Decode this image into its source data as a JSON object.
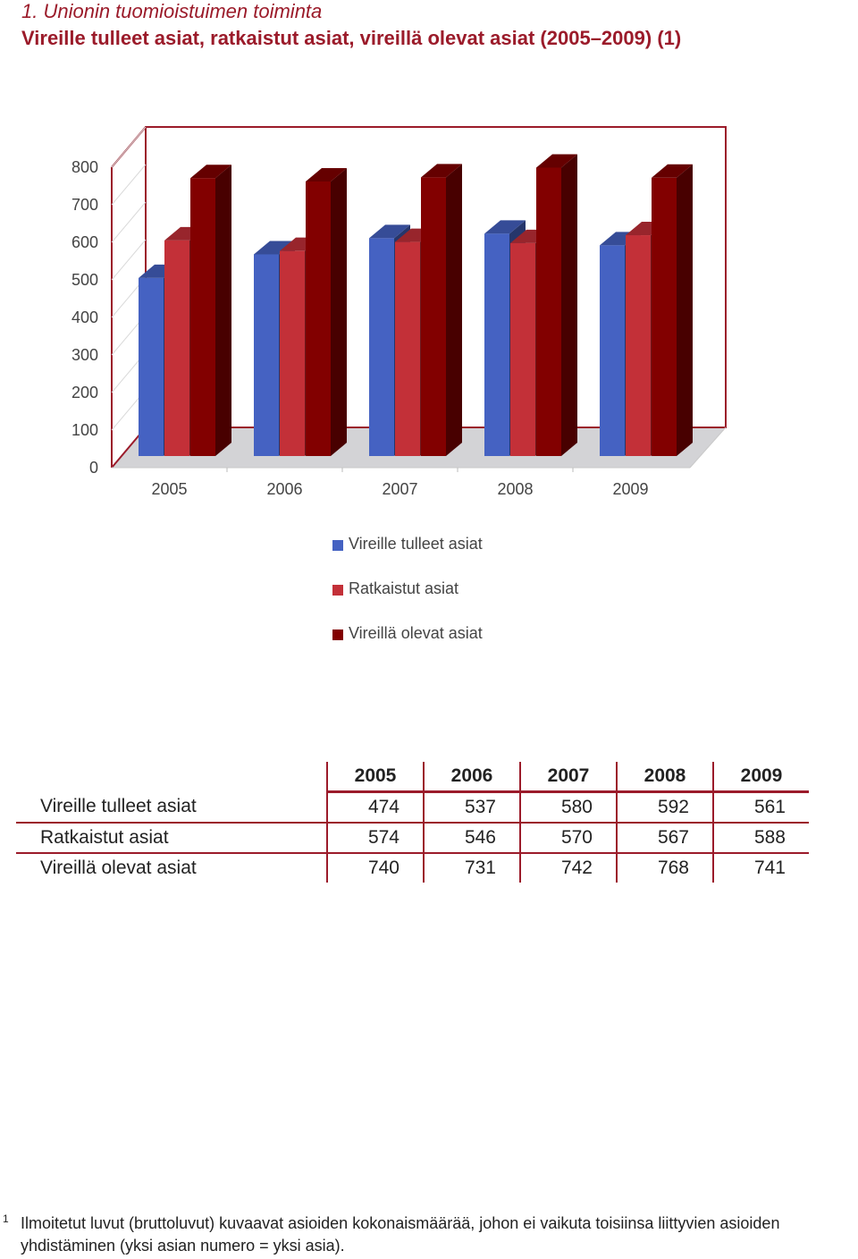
{
  "header": {
    "section_title": "1. Unionin tuomioistuimen toiminta",
    "chart_title": "Vireille tulleet asiat, ratkaistut asiat, vireillä olevat asiat (2005–2009) (1)"
  },
  "chart_data": {
    "type": "bar",
    "categories": [
      "2005",
      "2006",
      "2007",
      "2008",
      "2009"
    ],
    "series": [
      {
        "name": "Vireille tulleet asiat",
        "values": [
          474,
          537,
          580,
          592,
          561
        ],
        "color": "#4562c2"
      },
      {
        "name": "Ratkaistut asiat",
        "values": [
          574,
          546,
          570,
          567,
          588
        ],
        "color": "#c33038"
      },
      {
        "name": "Vireillä olevat asiat",
        "values": [
          740,
          731,
          742,
          768,
          741
        ],
        "color": "#820000"
      }
    ],
    "yticks": [
      "0",
      "100",
      "200",
      "300",
      "400",
      "500",
      "600",
      "700",
      "800"
    ],
    "ylim": [
      0,
      800
    ],
    "grid": true,
    "style": "3d",
    "legend_position": "bottom"
  },
  "table": {
    "years": [
      "2005",
      "2006",
      "2007",
      "2008",
      "2009"
    ],
    "rows": [
      {
        "label": "Vireille tulleet asiat",
        "values": [
          "474",
          "537",
          "580",
          "592",
          "561"
        ]
      },
      {
        "label": "Ratkaistut asiat",
        "values": [
          "574",
          "546",
          "570",
          "567",
          "588"
        ]
      },
      {
        "label": "Vireillä olevat asiat",
        "values": [
          "740",
          "731",
          "742",
          "768",
          "741"
        ]
      }
    ]
  },
  "footnote": {
    "mark": "1",
    "line1": "Ilmoitetut luvut (bruttoluvut) kuvaavat asioiden kokonaismäärää, johon ei vaikuta toisiinsa liittyvien asioiden",
    "line2": "yhdistäminen (yksi asian numero = yksi asia)."
  }
}
